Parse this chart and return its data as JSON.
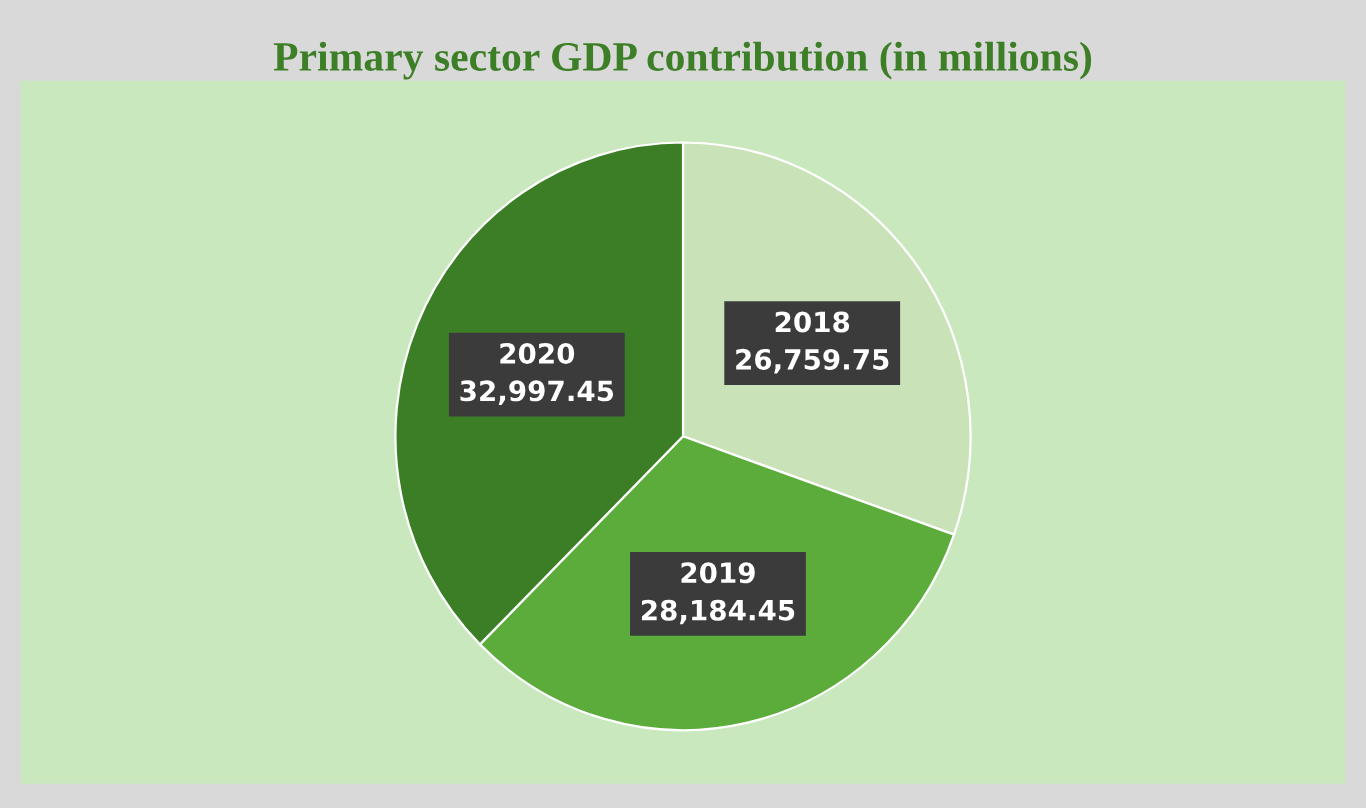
{
  "chart_data": {
    "type": "pie",
    "title": "Primary sector GDP contribution (in millions)",
    "categories": [
      "2018",
      "2019",
      "2020"
    ],
    "values": [
      26759.75,
      28184.45,
      32997.45
    ],
    "value_labels": [
      "26,759.75",
      "28,184.45",
      "32,997.45"
    ],
    "colors": [
      "#c9e2b8",
      "#5cac3c",
      "#3c7e26"
    ],
    "legend": false
  }
}
